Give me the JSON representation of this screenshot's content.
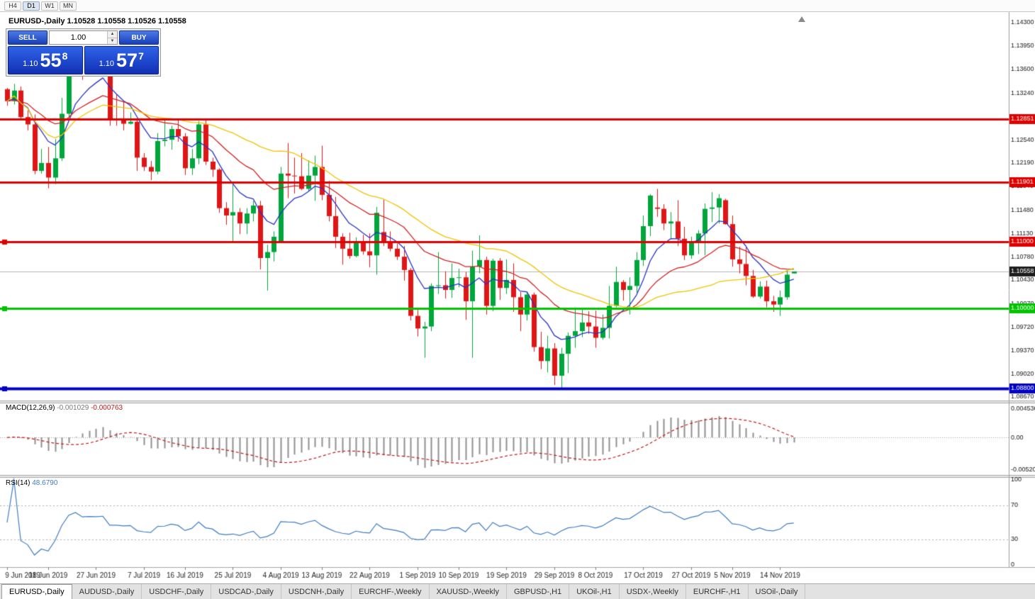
{
  "toolbar": {
    "buttons": [
      {
        "label": "H4",
        "active": false
      },
      {
        "label": "D1",
        "active": true
      },
      {
        "label": "W1",
        "active": false
      },
      {
        "label": "MN",
        "active": false
      }
    ]
  },
  "chart_header": {
    "symbol_period": "EURUSD-,Daily",
    "ohlc_text": "1.10528 1.10558 1.10526 1.10558"
  },
  "trade_panel": {
    "sell_label": "SELL",
    "buy_label": "BUY",
    "volume": "1.00",
    "sell_price": {
      "prefix": "1.10",
      "big": "55",
      "sup": "8"
    },
    "buy_price": {
      "prefix": "1.10",
      "big": "57",
      "sup": "7"
    }
  },
  "indicators": {
    "macd": {
      "name": "MACD(12,26,9)",
      "value": "-0.001029",
      "signal": "-0.000763"
    },
    "rsi": {
      "name": "RSI(14)",
      "value": "48.6790"
    }
  },
  "tabs": [
    {
      "label": "EURUSD-,Daily",
      "active": true
    },
    {
      "label": "AUDUSD-,Daily",
      "active": false
    },
    {
      "label": "USDCHF-,Daily",
      "active": false
    },
    {
      "label": "USDCAD-,Daily",
      "active": false
    },
    {
      "label": "USDCNH-,Daily",
      "active": false
    },
    {
      "label": "EURCHF-,Weekly",
      "active": false
    },
    {
      "label": "XAUUSD-,Weekly",
      "active": false
    },
    {
      "label": "GBPUSD-,H1",
      "active": false
    },
    {
      "label": "UKOil-,H1",
      "active": false
    },
    {
      "label": "USDX-,Weekly",
      "active": false
    },
    {
      "label": "EURCHF-,H1",
      "active": false
    },
    {
      "label": "USOil-,Daily",
      "active": false
    }
  ],
  "chart_data": {
    "type": "candlestick",
    "symbol": "EURUSD-",
    "timeframe": "Daily",
    "colors": {
      "bull": "#00A53C",
      "bear": "#E01616",
      "macd_hist": "#8F8F8F",
      "macd_signal": "#C01818",
      "current_line": "#B5B5B5",
      "current_box": "#1C1C1C"
    },
    "y_axis": {
      "ticks": [
        "1.14300",
        "1.13950",
        "1.13600",
        "1.13240",
        "1.12890",
        "1.12540",
        "1.12190",
        "1.11840",
        "1.11480",
        "1.11130",
        "1.10780",
        "1.10430",
        "1.10070",
        "1.09720",
        "1.09370",
        "1.09020",
        "1.08670"
      ]
    },
    "h_lines": [
      {
        "price": 1.12851,
        "label": "1.12851",
        "color": "#E00000",
        "width": 3,
        "handle": false
      },
      {
        "price": 1.11901,
        "label": "1.11901",
        "color": "#E00000",
        "width": 3,
        "handle": false
      },
      {
        "price": 1.11,
        "label": "1.11000",
        "color": "#E00000",
        "width": 3,
        "handle": true
      },
      {
        "price": 1.1,
        "label": "1.10000",
        "color": "#00C400",
        "width": 3,
        "handle": true
      },
      {
        "price": 1.088,
        "label": "1.08800",
        "color": "#0000C8",
        "width": 4,
        "handle": true
      }
    ],
    "current_price": {
      "value": 1.10558,
      "label": "1.10558"
    },
    "ma_lines": [
      {
        "name": "fast-ma",
        "type": "ema",
        "period": 8,
        "color": "#2732C4"
      },
      {
        "name": "medium-ma",
        "type": "ema",
        "period": 21,
        "color": "#D02020"
      },
      {
        "name": "slow-ma",
        "type": "sma",
        "period": 34,
        "color": "#EFC400"
      }
    ],
    "macd": {
      "fast": 12,
      "slow": 26,
      "signal": 9,
      "scale_ticks": [
        {
          "v": 0.004536,
          "t": "0.004536"
        },
        {
          "v": 0,
          "t": "0.00"
        },
        {
          "v": -0.0052,
          "t": "-0.00520"
        }
      ]
    },
    "rsi": {
      "period": 14,
      "levels": [
        70,
        30
      ],
      "color": "#3E7CBF",
      "scale_ticks": [
        {
          "v": 100,
          "t": "100"
        },
        {
          "v": 70,
          "t": "70"
        },
        {
          "v": 30,
          "t": "30"
        },
        {
          "v": 0,
          "t": "0"
        }
      ]
    },
    "x_labels": [
      {
        "i": 0,
        "t": "9 Jun 2019"
      },
      {
        "i": 6,
        "t": "18 Jun 2019"
      },
      {
        "i": 13,
        "t": "27 Jun 2019"
      },
      {
        "i": 20,
        "t": "7 Jul 2019"
      },
      {
        "i": 26,
        "t": "16 Jul 2019"
      },
      {
        "i": 33,
        "t": "25 Jul 2019"
      },
      {
        "i": 40,
        "t": "4 Aug 2019"
      },
      {
        "i": 46,
        "t": "13 Aug 2019"
      },
      {
        "i": 53,
        "t": "22 Aug 2019"
      },
      {
        "i": 60,
        "t": "1 Sep 2019"
      },
      {
        "i": 66,
        "t": "10 Sep 2019"
      },
      {
        "i": 73,
        "t": "19 Sep 2019"
      },
      {
        "i": 80,
        "t": "29 Sep 2019"
      },
      {
        "i": 86,
        "t": "8 Oct 2019"
      },
      {
        "i": 93,
        "t": "17 Oct 2019"
      },
      {
        "i": 100,
        "t": "27 Oct 2019"
      },
      {
        "i": 106,
        "t": "5 Nov 2019"
      },
      {
        "i": 113,
        "t": "14 Nov 2019"
      }
    ],
    "ohlc": [
      [
        1.133,
        1.1332,
        1.1305,
        1.1312
      ],
      [
        1.1312,
        1.1338,
        1.1307,
        1.1328
      ],
      [
        1.1328,
        1.1334,
        1.1283,
        1.1288
      ],
      [
        1.1288,
        1.1298,
        1.1268,
        1.1277
      ],
      [
        1.1277,
        1.1292,
        1.1202,
        1.1207
      ],
      [
        1.1207,
        1.124,
        1.1203,
        1.1219
      ],
      [
        1.1219,
        1.1243,
        1.1181,
        1.1197
      ],
      [
        1.1197,
        1.1255,
        1.1187,
        1.1226
      ],
      [
        1.1226,
        1.1317,
        1.1222,
        1.1293
      ],
      [
        1.1293,
        1.1378,
        1.1288,
        1.1369
      ],
      [
        1.1369,
        1.1406,
        1.1363,
        1.1399
      ],
      [
        1.1399,
        1.1412,
        1.1344,
        1.1365
      ],
      [
        1.1365,
        1.1391,
        1.1351,
        1.137
      ],
      [
        1.137,
        1.1392,
        1.1362,
        1.1368
      ],
      [
        1.1368,
        1.1394,
        1.1351,
        1.1373
      ],
      [
        1.1364,
        1.1368,
        1.1275,
        1.1286
      ],
      [
        1.1286,
        1.1322,
        1.1275,
        1.1285
      ],
      [
        1.1285,
        1.1312,
        1.1268,
        1.1278
      ],
      [
        1.1278,
        1.1295,
        1.1277,
        1.1281
      ],
      [
        1.1281,
        1.1286,
        1.1207,
        1.1227
      ],
      [
        1.1227,
        1.1234,
        1.1207,
        1.1213
      ],
      [
        1.1213,
        1.1222,
        1.1193,
        1.1206
      ],
      [
        1.1206,
        1.1264,
        1.1202,
        1.1252
      ],
      [
        1.1252,
        1.1286,
        1.1244,
        1.1254
      ],
      [
        1.1254,
        1.1275,
        1.1239,
        1.127
      ],
      [
        1.127,
        1.1284,
        1.1251,
        1.1259
      ],
      [
        1.1259,
        1.1264,
        1.1201,
        1.1211
      ],
      [
        1.1211,
        1.124,
        1.1201,
        1.1226
      ],
      [
        1.1226,
        1.1282,
        1.1217,
        1.1277
      ],
      [
        1.1277,
        1.1283,
        1.1216,
        1.1221
      ],
      [
        1.1221,
        1.1227,
        1.1198,
        1.1209
      ],
      [
        1.1209,
        1.1211,
        1.1144,
        1.1151
      ],
      [
        1.1151,
        1.116,
        1.1126,
        1.114
      ],
      [
        1.114,
        1.1187,
        1.1101,
        1.1145
      ],
      [
        1.1145,
        1.1151,
        1.1112,
        1.1128
      ],
      [
        1.1128,
        1.1151,
        1.1112,
        1.1143
      ],
      [
        1.1143,
        1.1162,
        1.1131,
        1.1155
      ],
      [
        1.1155,
        1.1162,
        1.1059,
        1.1076
      ],
      [
        1.1076,
        1.1096,
        1.1027,
        1.1085
      ],
      [
        1.1085,
        1.1116,
        1.1071,
        1.1108
      ],
      [
        1.1101,
        1.1213,
        1.1101,
        1.1203
      ],
      [
        1.1203,
        1.1249,
        1.1166,
        1.12
      ],
      [
        1.12,
        1.1227,
        1.1173,
        1.1199
      ],
      [
        1.1199,
        1.1234,
        1.1178,
        1.118
      ],
      [
        1.118,
        1.1223,
        1.1177,
        1.12
      ],
      [
        1.12,
        1.123,
        1.1162,
        1.1213
      ],
      [
        1.1213,
        1.1245,
        1.1163,
        1.1171
      ],
      [
        1.1171,
        1.1192,
        1.1131,
        1.1139
      ],
      [
        1.1139,
        1.1168,
        1.1091,
        1.1108
      ],
      [
        1.1108,
        1.1113,
        1.1066,
        1.109
      ],
      [
        1.109,
        1.1114,
        1.1075,
        1.1079
      ],
      [
        1.1079,
        1.1107,
        1.1077,
        1.1099
      ],
      [
        1.1099,
        1.1111,
        1.1081,
        1.1086
      ],
      [
        1.1086,
        1.1113,
        1.1062,
        1.108
      ],
      [
        1.108,
        1.1153,
        1.1051,
        1.1144
      ],
      [
        1.1115,
        1.1164,
        1.1094,
        1.1101
      ],
      [
        1.1101,
        1.1116,
        1.1086,
        1.109
      ],
      [
        1.109,
        1.1098,
        1.1073,
        1.1078
      ],
      [
        1.1078,
        1.1094,
        1.1042,
        1.1058
      ],
      [
        1.1058,
        1.1061,
        1.0982,
        1.0989
      ],
      [
        1.0989,
        1.0998,
        1.0958,
        1.097
      ],
      [
        1.097,
        1.098,
        1.0926,
        1.0973
      ],
      [
        1.0973,
        1.1038,
        1.0966,
        1.1034
      ],
      [
        1.1034,
        1.1085,
        1.1022,
        1.1035
      ],
      [
        1.1035,
        1.1056,
        1.1015,
        1.1028
      ],
      [
        1.1028,
        1.1068,
        1.1016,
        1.1046
      ],
      [
        1.1046,
        1.106,
        1.1032,
        1.1047
      ],
      [
        1.1047,
        1.1055,
        1.0983,
        1.1011
      ],
      [
        1.1011,
        1.1087,
        1.0926,
        1.1063
      ],
      [
        1.1063,
        1.111,
        1.1053,
        1.1073
      ],
      [
        1.1073,
        1.1078,
        1.0991,
        1.1004
      ],
      [
        1.1004,
        1.1075,
        1.0996,
        1.1072
      ],
      [
        1.1072,
        1.1076,
        1.1013,
        1.1031
      ],
      [
        1.1031,
        1.1074,
        1.1022,
        1.1043
      ],
      [
        1.1043,
        1.1068,
        1.0995,
        1.1017
      ],
      [
        1.1017,
        1.1025,
        1.0966,
        1.0991
      ],
      [
        1.0991,
        1.1024,
        1.0982,
        1.1021
      ],
      [
        1.1021,
        1.1024,
        1.0935,
        1.0942
      ],
      [
        1.0942,
        1.0965,
        1.0909,
        1.0921
      ],
      [
        1.0921,
        1.0959,
        1.0904,
        1.094
      ],
      [
        1.094,
        1.0948,
        1.0885,
        1.0899
      ],
      [
        1.0899,
        1.0941,
        1.0879,
        1.0932
      ],
      [
        1.0932,
        1.0964,
        1.0903,
        1.0959
      ],
      [
        1.0959,
        1.0999,
        1.0941,
        1.0966
      ],
      [
        1.0966,
        1.0999,
        1.0957,
        1.0979
      ],
      [
        1.0979,
        1.0996,
        1.0962,
        1.0973
      ],
      [
        1.0973,
        1.0997,
        1.0941,
        1.0956
      ],
      [
        1.0956,
        1.0991,
        1.0953,
        1.0971
      ],
      [
        1.0971,
        1.1034,
        1.0955,
        1.1004
      ],
      [
        1.1004,
        1.1063,
        1.1002,
        1.104
      ],
      [
        1.104,
        1.1043,
        1.1012,
        1.1028
      ],
      [
        1.1028,
        1.1047,
        1.0991,
        1.1034
      ],
      [
        1.1034,
        1.1085,
        1.1024,
        1.1073
      ],
      [
        1.1073,
        1.114,
        1.1064,
        1.1124
      ],
      [
        1.1124,
        1.1172,
        1.1109,
        1.117
      ],
      [
        1.1152,
        1.118,
        1.1138,
        1.115
      ],
      [
        1.115,
        1.1157,
        1.1118,
        1.1128
      ],
      [
        1.1128,
        1.1145,
        1.1106,
        1.1131
      ],
      [
        1.1131,
        1.1163,
        1.1094,
        1.1105
      ],
      [
        1.1105,
        1.1123,
        1.1073,
        1.108
      ],
      [
        1.108,
        1.1108,
        1.1075,
        1.11
      ],
      [
        1.11,
        1.1118,
        1.1082,
        1.1113
      ],
      [
        1.1113,
        1.1158,
        1.108,
        1.115
      ],
      [
        1.115,
        1.1175,
        1.113,
        1.1152
      ],
      [
        1.1152,
        1.1172,
        1.1128,
        1.1166
      ],
      [
        1.1163,
        1.1165,
        1.1126,
        1.1127
      ],
      [
        1.1127,
        1.114,
        1.1063,
        1.1074
      ],
      [
        1.1074,
        1.1093,
        1.1053,
        1.1067
      ],
      [
        1.1067,
        1.1092,
        1.1035,
        1.1049
      ],
      [
        1.1049,
        1.1058,
        1.1016,
        1.1018
      ],
      [
        1.1018,
        1.1041,
        1.1015,
        1.1033
      ],
      [
        1.1033,
        1.1042,
        1.1002,
        1.1011
      ],
      [
        1.1011,
        1.1019,
        1.0995,
        1.1006
      ],
      [
        1.1006,
        1.1027,
        1.0989,
        1.1017
      ],
      [
        1.1017,
        1.1058,
        1.1013,
        1.1051
      ],
      [
        1.10528,
        1.10558,
        1.10526,
        1.10558
      ]
    ]
  }
}
